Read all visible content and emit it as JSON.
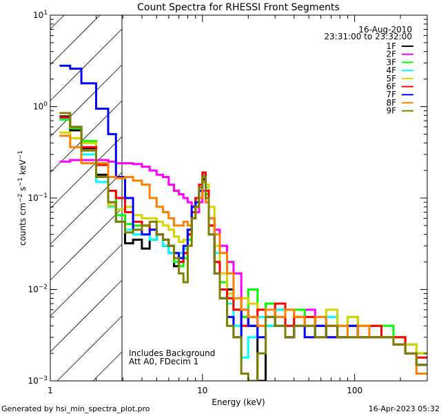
{
  "chart_data": {
    "type": "line",
    "title": "Count Spectra for RHESSI Front Segments",
    "xlabel": "Energy (keV)",
    "ylabel": "counts cm^-2 s^-1 keV^-1",
    "ylabel_parts": {
      "base": "counts cm",
      "exp1": "−2",
      "mid": " s",
      "exp2": "−1",
      "end": " keV",
      "exp3": "−1"
    },
    "xscale": "log",
    "yscale": "log",
    "xlim": [
      1,
      300
    ],
    "ylim": [
      0.001,
      10
    ],
    "x_ticks": [
      {
        "value": 1,
        "label": "1"
      },
      {
        "value": 10,
        "label": "10"
      },
      {
        "value": 100,
        "label": "100"
      }
    ],
    "y_ticks": [
      {
        "value": 10,
        "base": "10",
        "exp": "1"
      },
      {
        "value": 1,
        "base": "10",
        "exp": "0"
      },
      {
        "value": 0.1,
        "base": "10",
        "exp": "−1"
      },
      {
        "value": 0.01,
        "base": "10",
        "exp": "−2"
      },
      {
        "value": 0.001,
        "base": "10",
        "exp": "−3"
      }
    ],
    "hatched_region_keV": [
      1,
      3
    ],
    "date": "16-Aug-2010",
    "time_range": "23:31:00 to 23:32:00",
    "annotations": [
      "Includes Background",
      "Att A0, FDecim 1"
    ],
    "legend_position": "top-right",
    "energy_edges": [
      1.15,
      1.35,
      1.6,
      2.0,
      2.4,
      2.7,
      3.1,
      3.5,
      4.0,
      4.5,
      5.0,
      5.5,
      6.0,
      6.5,
      7.0,
      7.5,
      8.0,
      8.5,
      9.0,
      9.5,
      10.0,
      10.5,
      11.0,
      12.0,
      13.0,
      14.5,
      16,
      18,
      20,
      23,
      26,
      30,
      35,
      40,
      47,
      55,
      65,
      77,
      90,
      105,
      125,
      150,
      180,
      215,
      255,
      300
    ],
    "series": [
      {
        "name": "1F",
        "color": "#000000",
        "values": [
          0.78,
          0.55,
          0.35,
          0.18,
          0.09,
          0.055,
          0.032,
          0.035,
          0.028,
          0.035,
          0.04,
          0.03,
          0.025,
          0.018,
          0.02,
          0.025,
          0.04,
          0.07,
          0.08,
          0.1,
          0.16,
          0.12,
          0.05,
          0.02,
          0.008,
          0.01,
          0.006,
          0.005,
          0.004,
          0.001,
          0.004,
          0.006,
          0.003,
          0.005,
          0.004,
          0.003,
          0.004,
          0.003,
          0.003,
          0.004,
          0.003,
          0.003,
          0.0025,
          0.002,
          0.0015
        ]
      },
      {
        "name": "2F",
        "color": "#ff00ff",
        "values": [
          0.25,
          0.26,
          0.26,
          0.26,
          0.25,
          0.24,
          0.24,
          0.235,
          0.22,
          0.2,
          0.18,
          0.17,
          0.14,
          0.12,
          0.11,
          0.1,
          0.09,
          0.08,
          0.07,
          0.09,
          0.12,
          0.1,
          0.06,
          0.045,
          0.03,
          0.02,
          0.015,
          0.006,
          0.005,
          0.004,
          0.007,
          0.005,
          0.006,
          0.004,
          0.006,
          0.005,
          0.003,
          0.004,
          0.005,
          0.003,
          0.004,
          0.003,
          0.003,
          0.0025,
          0.002
        ]
      },
      {
        "name": "3F",
        "color": "#00ff00",
        "values": [
          0.72,
          0.58,
          0.42,
          0.24,
          0.12,
          0.065,
          0.052,
          0.05,
          0.05,
          0.045,
          0.04,
          0.035,
          0.03,
          0.02,
          0.018,
          0.022,
          0.035,
          0.06,
          0.09,
          0.12,
          0.17,
          0.11,
          0.05,
          0.02,
          0.012,
          0.008,
          0.006,
          0.005,
          0.01,
          0.006,
          0.007,
          0.005,
          0.004,
          0.006,
          0.005,
          0.004,
          0.005,
          0.004,
          0.005,
          0.004,
          0.004,
          0.004,
          0.003,
          0.0025,
          0.002
        ]
      },
      {
        "name": "4F",
        "color": "#00ffff",
        "values": [
          0.75,
          0.6,
          0.3,
          0.15,
          0.08,
          0.055,
          0.045,
          0.04,
          0.04,
          0.035,
          0.04,
          0.03,
          0.025,
          0.022,
          0.025,
          0.028,
          0.045,
          0.07,
          0.1,
          0.13,
          0.18,
          0.13,
          0.06,
          0.025,
          0.01,
          0.007,
          0.004,
          0.0018,
          0.003,
          0.005,
          0.004,
          0.006,
          0.004,
          0.005,
          0.004,
          0.004,
          0.005,
          0.003,
          0.004,
          0.003,
          0.003,
          0.003,
          0.0025,
          0.002,
          0.0015
        ]
      },
      {
        "name": "5F",
        "color": "#d4d400",
        "values": [
          0.52,
          0.45,
          0.4,
          0.24,
          0.083,
          0.075,
          0.08,
          0.065,
          0.06,
          0.06,
          0.055,
          0.05,
          0.045,
          0.038,
          0.033,
          0.035,
          0.045,
          0.06,
          0.09,
          0.12,
          0.17,
          0.14,
          0.08,
          0.03,
          0.015,
          0.009,
          0.006,
          0.008,
          0.007,
          0.006,
          0.005,
          0.007,
          0.006,
          0.005,
          0.004,
          0.005,
          0.006,
          0.004,
          0.005,
          0.004,
          0.004,
          0.003,
          0.003,
          0.0025,
          0.002
        ]
      },
      {
        "name": "6F",
        "color": "#ff0000",
        "values": [
          0.76,
          0.6,
          0.36,
          0.23,
          0.12,
          0.1,
          0.07,
          0.055,
          0.05,
          0.045,
          0.04,
          0.035,
          0.03,
          0.025,
          0.02,
          0.025,
          0.04,
          0.07,
          0.1,
          0.14,
          0.19,
          0.12,
          0.05,
          0.02,
          0.01,
          0.008,
          0.006,
          0.004,
          0.005,
          0.006,
          0.005,
          0.007,
          0.004,
          0.005,
          0.005,
          0.004,
          0.004,
          0.003,
          0.004,
          0.003,
          0.004,
          0.003,
          0.003,
          0.002,
          0.0018
        ]
      },
      {
        "name": "7F",
        "color": "#0000ff",
        "values": [
          2.8,
          2.6,
          1.8,
          0.95,
          0.5,
          0.17,
          0.1,
          0.045,
          0.04,
          0.045,
          0.04,
          0.035,
          0.03,
          0.025,
          0.022,
          0.03,
          0.045,
          0.08,
          0.09,
          0.12,
          0.15,
          0.09,
          0.04,
          0.015,
          0.008,
          0.005,
          0.003,
          0.006,
          0.004,
          0.003,
          0.005,
          0.004,
          0.003,
          0.004,
          0.003,
          0.004,
          0.003,
          0.003,
          0.004,
          0.003,
          0.003,
          0.003,
          0.0025,
          0.002,
          0.0015
        ]
      },
      {
        "name": "8F",
        "color": "#ff8000",
        "values": [
          0.48,
          0.36,
          0.24,
          0.24,
          0.17,
          0.165,
          0.17,
          0.155,
          0.14,
          0.1,
          0.08,
          0.07,
          0.06,
          0.05,
          0.05,
          0.055,
          0.05,
          0.06,
          0.08,
          0.1,
          0.15,
          0.09,
          0.06,
          0.04,
          0.025,
          0.015,
          0.008,
          0.006,
          0.005,
          0.004,
          0.006,
          0.005,
          0.006,
          0.005,
          0.004,
          0.005,
          0.004,
          0.004,
          0.003,
          0.004,
          0.003,
          0.003,
          0.0025,
          0.002,
          0.0012
        ]
      },
      {
        "name": "9F",
        "color": "#808000",
        "values": [
          0.85,
          0.6,
          0.33,
          0.17,
          0.09,
          0.055,
          0.042,
          0.045,
          0.05,
          0.055,
          0.04,
          0.035,
          0.03,
          0.022,
          0.015,
          0.012,
          0.03,
          0.06,
          0.08,
          0.13,
          0.17,
          0.1,
          0.04,
          0.015,
          0.008,
          0.004,
          0.003,
          0.0012,
          0.001,
          0.002,
          0.005,
          0.004,
          0.003,
          0.004,
          0.004,
          0.003,
          0.004,
          0.003,
          0.003,
          0.003,
          0.003,
          0.003,
          0.0025,
          0.002,
          0.0015
        ]
      }
    ]
  },
  "footer": {
    "generated_by": "Generated by hsi_min_spectra_plot.pro",
    "timestamp": "16-Apr-2023 05:32"
  }
}
